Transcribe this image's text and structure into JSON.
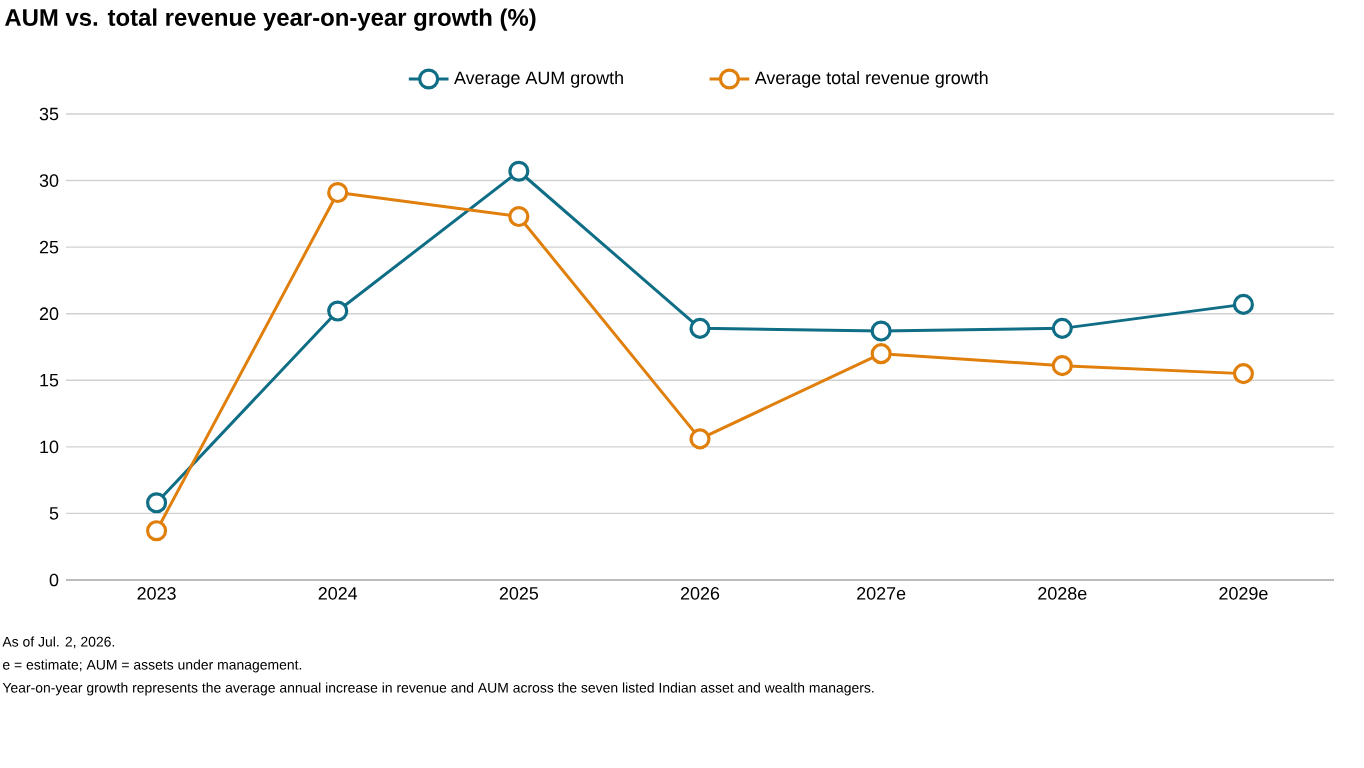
{
  "chart_data": {
    "type": "line",
    "title": "AUM vs. total revenue year-on-year growth (%)",
    "categories": [
      "2023",
      "2024",
      "2025",
      "2026",
      "2027e",
      "2028e",
      "2029e"
    ],
    "series": [
      {
        "name": "Average AUM growth",
        "color": "#0f6e85",
        "values": [
          5.8,
          20.2,
          30.7,
          18.9,
          18.7,
          18.9,
          20.7
        ]
      },
      {
        "name": "Average total revenue growth",
        "color": "#e07f0c",
        "values": [
          3.7,
          29.1,
          27.3,
          10.6,
          17.0,
          16.1,
          15.5
        ]
      }
    ],
    "ylim": [
      0,
      35
    ],
    "yticks": [
      0,
      5,
      10,
      15,
      20,
      25,
      30,
      35
    ],
    "grid": "y",
    "legend": "top",
    "marker": "circle",
    "annotations": [
      "As of Jul. 2, 2026.",
      "e = estimate; AUM = assets under management.",
      "Year-on-year growth represents the average annual increase in revenue and AUM across the seven listed Indian asset and wealth managers."
    ]
  }
}
